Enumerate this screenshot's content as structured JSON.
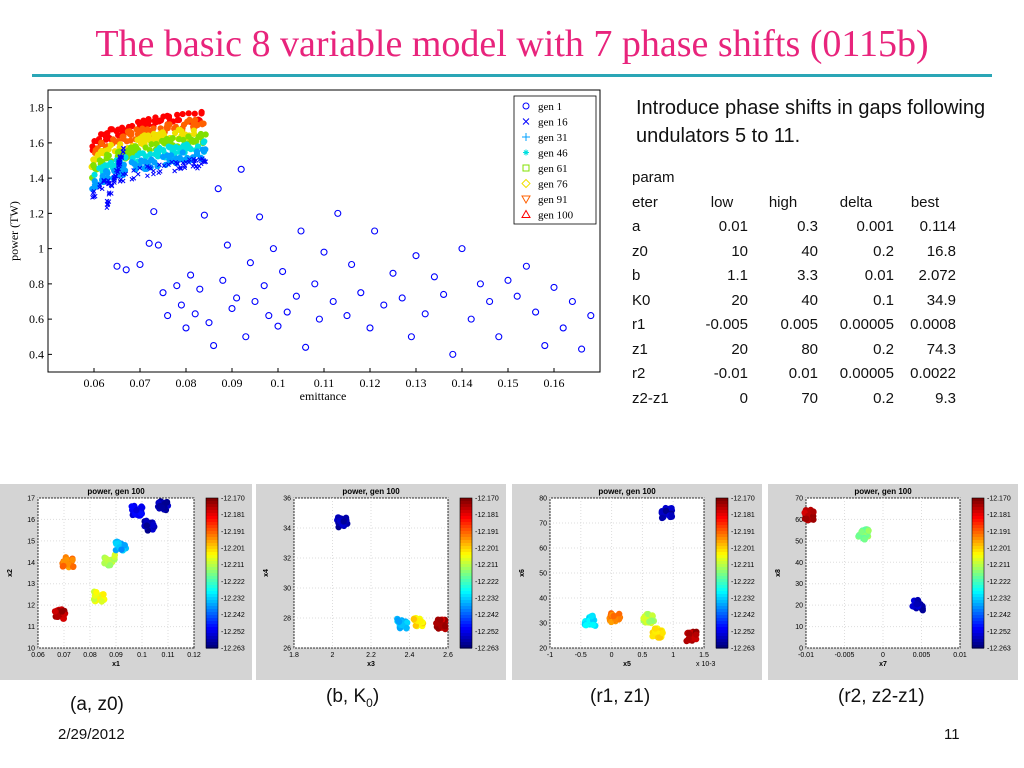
{
  "slide": {
    "title": "The basic 8 variable model with 7 phase shifts (0115b)",
    "intro": "Introduce phase shifts in gaps following undulators 5 to 11.",
    "date": "2/29/2012",
    "page_number": "11"
  },
  "param_table": {
    "headers": [
      "param\neter",
      "low",
      "high",
      "delta",
      "best"
    ],
    "rows": [
      [
        "a",
        "0.01",
        "0.3",
        "0.001",
        "0.114"
      ],
      [
        "z0",
        "10",
        "40",
        "0.2",
        "16.8"
      ],
      [
        "b",
        "1.1",
        "3.3",
        "0.01",
        "2.072"
      ],
      [
        "K0",
        "20",
        "40",
        "0.1",
        "34.9"
      ],
      [
        "r1",
        "-0.005",
        "0.005",
        "0.00005",
        "0.0008"
      ],
      [
        "z1",
        "20",
        "80",
        "0.2",
        "74.3"
      ],
      [
        "r2",
        "-0.01",
        "0.01",
        "0.00005",
        "0.0022"
      ],
      [
        "z2-z1",
        "0",
        "70",
        "0.2",
        "9.3"
      ]
    ]
  },
  "captions": [
    "(a, z0)",
    "(b, K",
    "0",
    ")",
    "(r1, z1)",
    "(r2, z2-z1)"
  ],
  "chart_data": [
    {
      "type": "scatter",
      "xlabel": "emittance",
      "ylabel": "power (TW)",
      "xlim": [
        0.05,
        0.17
      ],
      "ylim": [
        0.3,
        1.9
      ],
      "xticks": [
        "0.06",
        "0.07",
        "0.08",
        "0.09",
        "0.1",
        "0.11",
        "0.12",
        "0.13",
        "0.14",
        "0.15",
        "0.16"
      ],
      "yticks": [
        "0.4",
        "0.6",
        "0.8",
        "1",
        "1.2",
        "1.4",
        "1.6",
        "1.8"
      ],
      "legend_position": "top-right",
      "series": [
        {
          "name": "gen 1",
          "marker": "circle",
          "color": "#0000ff"
        },
        {
          "name": "gen 16",
          "marker": "x",
          "color": "#0000ff"
        },
        {
          "name": "gen 31",
          "marker": "plus",
          "color": "#00a0ff"
        },
        {
          "name": "gen 46",
          "marker": "star",
          "color": "#00e0e0"
        },
        {
          "name": "gen 61",
          "marker": "square",
          "color": "#80e000"
        },
        {
          "name": "gen 76",
          "marker": "diamond",
          "color": "#f0e000"
        },
        {
          "name": "gen 91",
          "marker": "triangle-down",
          "color": "#ff6000"
        },
        {
          "name": "gen 100",
          "marker": "triangle-up",
          "color": "#ff0000"
        }
      ],
      "gen1_points": [
        [
          0.065,
          0.9
        ],
        [
          0.067,
          0.88
        ],
        [
          0.07,
          0.91
        ],
        [
          0.072,
          1.03
        ],
        [
          0.073,
          1.21
        ],
        [
          0.074,
          1.02
        ],
        [
          0.075,
          0.75
        ],
        [
          0.076,
          0.62
        ],
        [
          0.078,
          0.79
        ],
        [
          0.079,
          0.68
        ],
        [
          0.08,
          0.55
        ],
        [
          0.081,
          0.85
        ],
        [
          0.082,
          0.63
        ],
        [
          0.083,
          0.77
        ],
        [
          0.084,
          1.19
        ],
        [
          0.085,
          0.58
        ],
        [
          0.086,
          0.45
        ],
        [
          0.087,
          1.34
        ],
        [
          0.088,
          0.82
        ],
        [
          0.089,
          1.02
        ],
        [
          0.09,
          0.66
        ],
        [
          0.091,
          0.72
        ],
        [
          0.092,
          1.45
        ],
        [
          0.093,
          0.5
        ],
        [
          0.094,
          0.92
        ],
        [
          0.095,
          0.7
        ],
        [
          0.096,
          1.18
        ],
        [
          0.097,
          0.79
        ],
        [
          0.098,
          0.62
        ],
        [
          0.099,
          1.0
        ],
        [
          0.1,
          0.56
        ],
        [
          0.101,
          0.87
        ],
        [
          0.102,
          0.64
        ],
        [
          0.104,
          0.73
        ],
        [
          0.105,
          1.1
        ],
        [
          0.106,
          0.44
        ],
        [
          0.108,
          0.8
        ],
        [
          0.109,
          0.6
        ],
        [
          0.11,
          0.98
        ],
        [
          0.112,
          0.7
        ],
        [
          0.113,
          1.2
        ],
        [
          0.115,
          0.62
        ],
        [
          0.116,
          0.91
        ],
        [
          0.118,
          0.75
        ],
        [
          0.12,
          0.55
        ],
        [
          0.121,
          1.1
        ],
        [
          0.123,
          0.68
        ],
        [
          0.125,
          0.86
        ],
        [
          0.127,
          0.72
        ],
        [
          0.129,
          0.5
        ],
        [
          0.13,
          0.96
        ],
        [
          0.132,
          0.63
        ],
        [
          0.134,
          0.84
        ],
        [
          0.136,
          0.74
        ],
        [
          0.138,
          0.4
        ],
        [
          0.14,
          1.0
        ],
        [
          0.142,
          0.6
        ],
        [
          0.144,
          0.8
        ],
        [
          0.146,
          0.7
        ],
        [
          0.148,
          0.5
        ],
        [
          0.15,
          0.82
        ],
        [
          0.152,
          0.73
        ],
        [
          0.154,
          0.9
        ],
        [
          0.156,
          0.64
        ],
        [
          0.158,
          0.45
        ],
        [
          0.16,
          0.78
        ],
        [
          0.162,
          0.55
        ],
        [
          0.164,
          0.7
        ],
        [
          0.166,
          0.43
        ],
        [
          0.168,
          0.62
        ]
      ]
    },
    {
      "type": "scatter",
      "title": "power, gen 100",
      "xlabel": "x1",
      "ylabel": "x2",
      "xlim": [
        0.06,
        0.12
      ],
      "ylim": [
        10,
        17
      ],
      "xticks": [
        "0.06",
        "0.07",
        "0.08",
        "0.09",
        "0.1",
        "0.11",
        "0.12"
      ],
      "yticks": [
        "10",
        "11",
        "12",
        "13",
        "14",
        "15",
        "16",
        "17"
      ],
      "colorbar": [
        "-12.170",
        "-12.181",
        "-12.191",
        "-12.201",
        "-12.211",
        "-12.222",
        "-12.232",
        "-12.242",
        "-12.252",
        "-12.263"
      ],
      "clusters": [
        {
          "x": 0.0685,
          "y": 11.6,
          "v": 0.95
        },
        {
          "x": 0.0715,
          "y": 14.0,
          "v": 0.75
        },
        {
          "x": 0.0835,
          "y": 12.4,
          "v": 0.6
        },
        {
          "x": 0.0875,
          "y": 14.1,
          "v": 0.55
        },
        {
          "x": 0.092,
          "y": 14.8,
          "v": 0.3
        },
        {
          "x": 0.098,
          "y": 16.4,
          "v": 0.1
        },
        {
          "x": 0.103,
          "y": 15.7,
          "v": 0.05
        },
        {
          "x": 0.108,
          "y": 16.6,
          "v": 0.05
        }
      ]
    },
    {
      "type": "scatter",
      "title": "power, gen 100",
      "xlabel": "x3",
      "ylabel": "x4",
      "xlim": [
        1.8,
        2.6
      ],
      "ylim": [
        26,
        36
      ],
      "xticks": [
        "1.8",
        "2",
        "2.2",
        "2.4",
        "2.6"
      ],
      "yticks": [
        "26",
        "28",
        "30",
        "32",
        "34",
        "36"
      ],
      "colorbar": [
        "-12.170",
        "-12.181",
        "-12.191",
        "-12.201",
        "-12.211",
        "-12.222",
        "-12.232",
        "-12.242",
        "-12.252",
        "-12.263"
      ],
      "clusters": [
        {
          "x": 2.05,
          "y": 34.4,
          "v": 0.05
        },
        {
          "x": 2.36,
          "y": 27.6,
          "v": 0.3
        },
        {
          "x": 2.45,
          "y": 27.8,
          "v": 0.65
        },
        {
          "x": 2.56,
          "y": 27.6,
          "v": 0.95
        }
      ]
    },
    {
      "type": "scatter",
      "title": "power, gen 100",
      "xlabel": "x5",
      "ylabel": "x6",
      "xscale_label": "x 10-3",
      "xlim": [
        -1,
        1.5
      ],
      "ylim": [
        20,
        80
      ],
      "xticks": [
        "-1",
        "-0.5",
        "0",
        "0.5",
        "1",
        "1.5"
      ],
      "yticks": [
        "20",
        "30",
        "40",
        "50",
        "60",
        "70",
        "80"
      ],
      "colorbar": [
        "-12.170",
        "-12.181",
        "-12.191",
        "-12.201",
        "-12.211",
        "-12.222",
        "-12.232",
        "-12.242",
        "-12.252",
        "-12.263"
      ],
      "clusters": [
        {
          "x": 0.9,
          "y": 74.0,
          "v": 0.05
        },
        {
          "x": -0.35,
          "y": 31.0,
          "v": 0.35
        },
        {
          "x": 0.05,
          "y": 32.5,
          "v": 0.75
        },
        {
          "x": 0.6,
          "y": 32.0,
          "v": 0.55
        },
        {
          "x": 0.75,
          "y": 26.0,
          "v": 0.65
        },
        {
          "x": 1.3,
          "y": 24.5,
          "v": 0.95
        }
      ]
    },
    {
      "type": "scatter",
      "title": "power, gen 100",
      "xlabel": "x7",
      "ylabel": "x8",
      "xlim": [
        -0.01,
        0.01
      ],
      "ylim": [
        0,
        70
      ],
      "xticks": [
        "-0.01",
        "-0.005",
        "0",
        "0.005",
        "0.01"
      ],
      "yticks": [
        "0",
        "10",
        "20",
        "30",
        "40",
        "50",
        "60",
        "70"
      ],
      "colorbar": [
        "-12.170",
        "-12.181",
        "-12.191",
        "-12.201",
        "-12.211",
        "-12.222",
        "-12.232",
        "-12.242",
        "-12.252",
        "-12.263"
      ],
      "clusters": [
        {
          "x": -0.0095,
          "y": 62.0,
          "v": 0.95
        },
        {
          "x": -0.0025,
          "y": 53.0,
          "v": 0.5
        },
        {
          "x": 0.0045,
          "y": 20.0,
          "v": 0.05
        }
      ]
    }
  ]
}
